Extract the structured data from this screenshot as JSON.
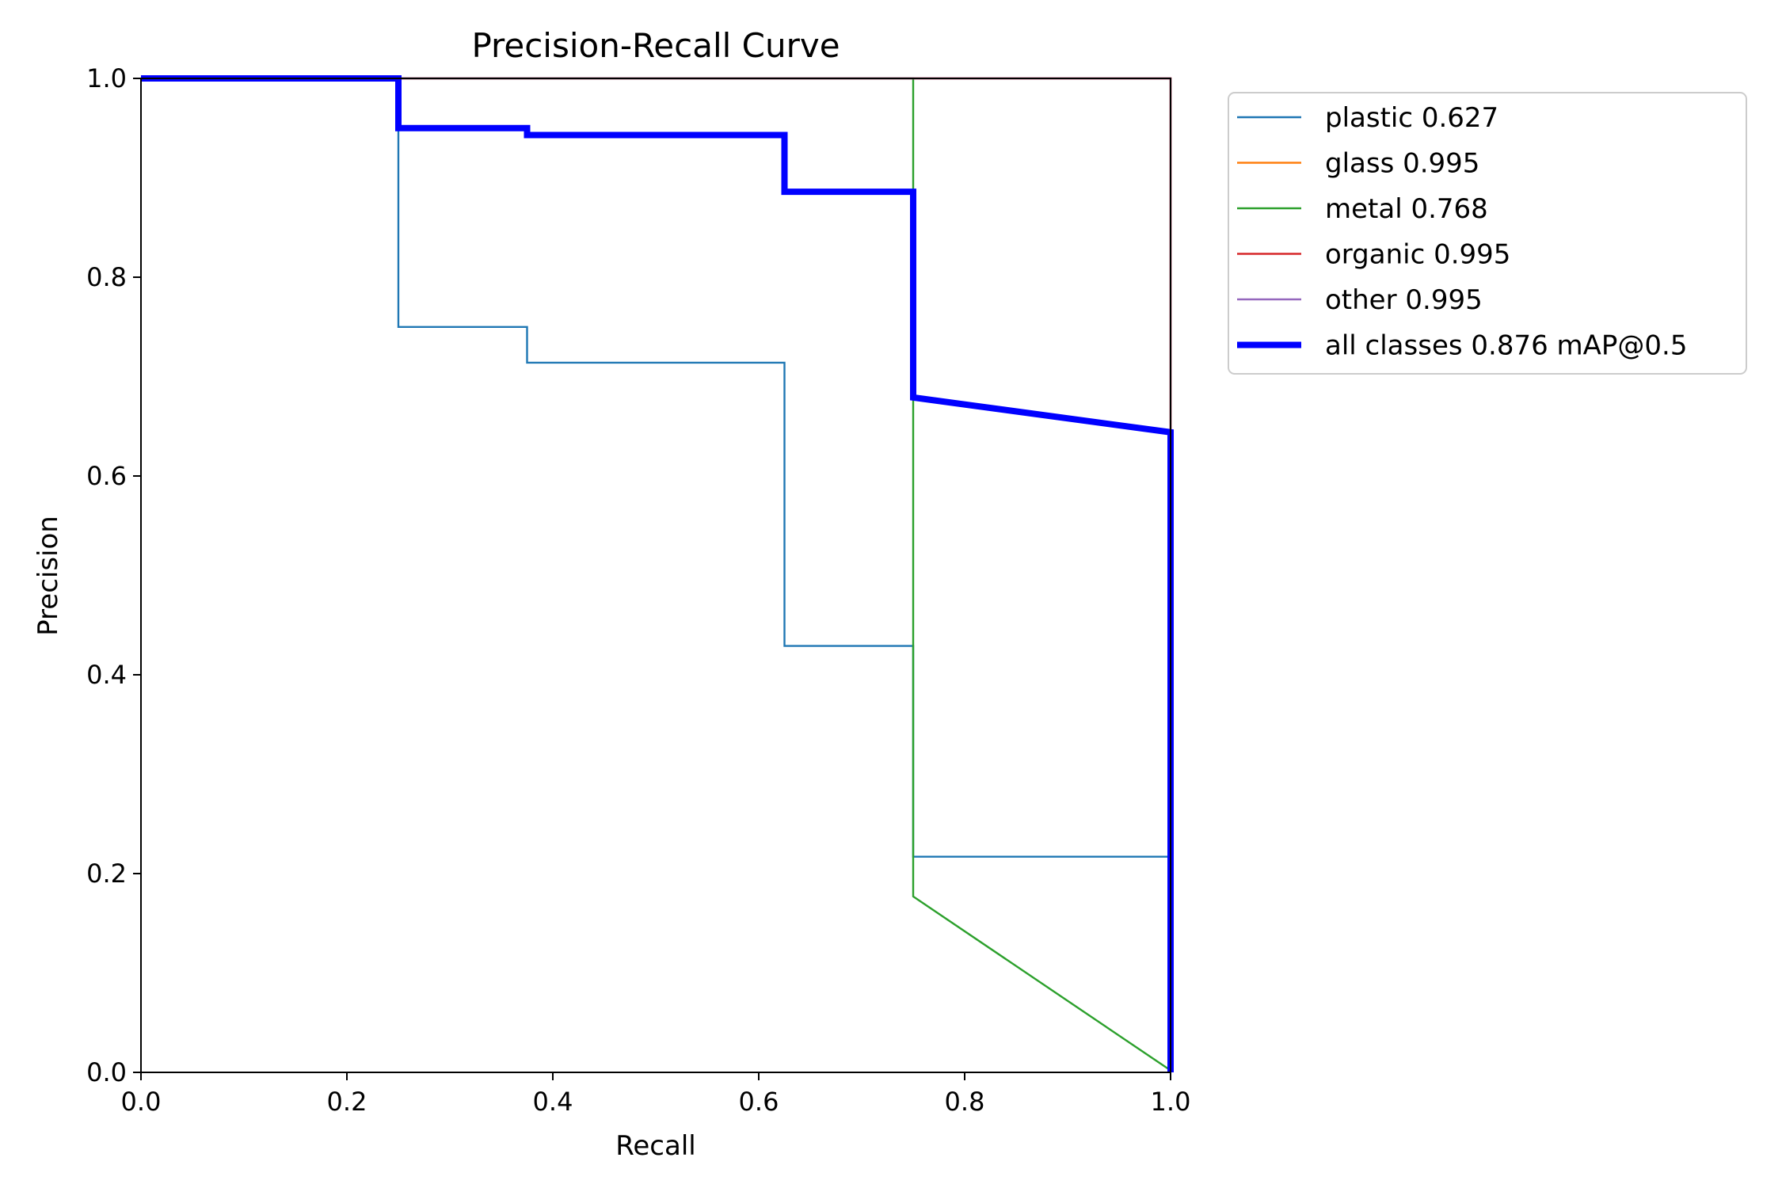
{
  "chart_data": {
    "type": "line",
    "title": "Precision-Recall Curve",
    "xlabel": "Recall",
    "ylabel": "Precision",
    "xlim": [
      0,
      1
    ],
    "ylim": [
      0,
      1
    ],
    "xticks": [
      "0.0",
      "0.2",
      "0.4",
      "0.6",
      "0.8",
      "1.0"
    ],
    "yticks": [
      "0.0",
      "0.2",
      "0.4",
      "0.6",
      "0.8",
      "1.0"
    ],
    "grid": false,
    "legend_position": "outside-top-right",
    "series": [
      {
        "name": "plastic 0.627",
        "color": "#1f77b4",
        "width": "thin",
        "points": [
          [
            0,
            1
          ],
          [
            0.25,
            1
          ],
          [
            0.25,
            0.75
          ],
          [
            0.375,
            0.75
          ],
          [
            0.375,
            0.714
          ],
          [
            0.625,
            0.714
          ],
          [
            0.625,
            0.429
          ],
          [
            0.75,
            0.429
          ],
          [
            0.75,
            0.217
          ],
          [
            1.0,
            0.217
          ],
          [
            1.0,
            0
          ]
        ]
      },
      {
        "name": "glass 0.995",
        "color": "#ff7f0e",
        "width": "thin",
        "points": [
          [
            0,
            1
          ],
          [
            1.0,
            1
          ],
          [
            1.0,
            0
          ]
        ]
      },
      {
        "name": "metal 0.768",
        "color": "#2ca02c",
        "width": "thin",
        "points": [
          [
            0,
            1
          ],
          [
            0.75,
            1
          ],
          [
            0.75,
            0.177
          ],
          [
            1.0,
            0.002
          ]
        ]
      },
      {
        "name": "organic 0.995",
        "color": "#d62728",
        "width": "thin",
        "points": [
          [
            0,
            1
          ],
          [
            1.0,
            1
          ],
          [
            1.0,
            0
          ]
        ]
      },
      {
        "name": "other 0.995",
        "color": "#9467bd",
        "width": "thin",
        "points": [
          [
            0,
            1
          ],
          [
            1.0,
            1
          ],
          [
            1.0,
            0
          ]
        ]
      },
      {
        "name": "all classes 0.876 mAP@0.5",
        "color": "#0000ff",
        "width": "thick",
        "points": [
          [
            0,
            1
          ],
          [
            0.25,
            1
          ],
          [
            0.25,
            0.95
          ],
          [
            0.375,
            0.95
          ],
          [
            0.375,
            0.943
          ],
          [
            0.625,
            0.943
          ],
          [
            0.625,
            0.886
          ],
          [
            0.75,
            0.886
          ],
          [
            0.75,
            0.679
          ],
          [
            1.0,
            0.644
          ],
          [
            1.0,
            0
          ]
        ]
      }
    ]
  }
}
